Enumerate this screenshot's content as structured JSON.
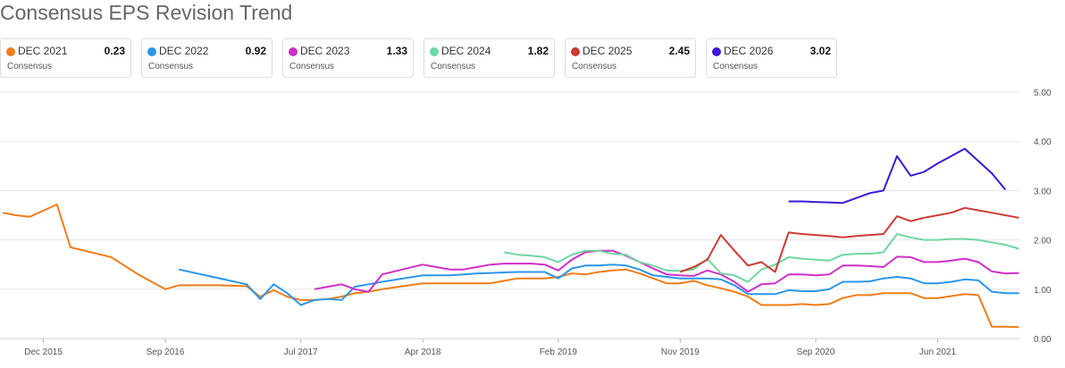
{
  "title": "Consensus EPS Revision Trend",
  "chart_data": {
    "type": "line",
    "title": "Consensus EPS Revision Trend",
    "xlabel": "",
    "ylabel": "",
    "ylim": [
      0,
      5
    ],
    "yticks": [
      "0.00",
      "1.00",
      "2.00",
      "3.00",
      "4.00",
      "5.00"
    ],
    "xticks": [
      {
        "label": "Dec 2015",
        "x": "2015-12"
      },
      {
        "label": "Sep 2016",
        "x": "2016-09"
      },
      {
        "label": "Jul 2017",
        "x": "2017-07"
      },
      {
        "label": "Apr 2018",
        "x": "2018-04"
      },
      {
        "label": "Feb 2019",
        "x": "2019-02"
      },
      {
        "label": "Nov 2019",
        "x": "2019-11"
      },
      {
        "label": "Sep 2020",
        "x": "2020-09"
      },
      {
        "label": "Jun 2021",
        "x": "2021-06"
      }
    ],
    "grid": "horizontal",
    "legend": "top",
    "series": [
      {
        "name": "DEC 2021",
        "value": "0.23",
        "sub": "Consensus",
        "color": "#f07d1a",
        "points": [
          [
            "2015-09",
            2.55
          ],
          [
            "2015-10",
            2.5
          ],
          [
            "2015-11",
            2.47
          ],
          [
            "2016-01",
            2.72
          ],
          [
            "2016-02",
            1.85
          ],
          [
            "2016-05",
            1.65
          ],
          [
            "2016-07",
            1.3
          ],
          [
            "2016-09",
            1.0
          ],
          [
            "2016-10",
            1.08
          ],
          [
            "2016-11",
            1.08
          ],
          [
            "2017-01",
            1.08
          ],
          [
            "2017-02",
            1.07
          ],
          [
            "2017-03",
            1.06
          ],
          [
            "2017-04",
            0.85
          ],
          [
            "2017-05",
            0.98
          ],
          [
            "2017-06",
            0.85
          ],
          [
            "2017-07",
            0.78
          ],
          [
            "2017-08",
            0.78
          ],
          [
            "2017-09",
            0.8
          ],
          [
            "2017-10",
            0.85
          ],
          [
            "2017-11",
            0.92
          ],
          [
            "2017-12",
            0.95
          ],
          [
            "2018-01",
            1.0
          ],
          [
            "2018-04",
            1.12
          ],
          [
            "2018-05",
            1.12
          ],
          [
            "2018-06",
            1.12
          ],
          [
            "2018-07",
            1.12
          ],
          [
            "2018-08",
            1.12
          ],
          [
            "2018-09",
            1.12
          ],
          [
            "2018-10",
            1.17
          ],
          [
            "2018-11",
            1.22
          ],
          [
            "2018-12",
            1.22
          ],
          [
            "2019-01",
            1.22
          ],
          [
            "2019-02",
            1.25
          ],
          [
            "2019-03",
            1.32
          ],
          [
            "2019-04",
            1.3
          ],
          [
            "2019-05",
            1.35
          ],
          [
            "2019-06",
            1.38
          ],
          [
            "2019-07",
            1.4
          ],
          [
            "2019-08",
            1.32
          ],
          [
            "2019-09",
            1.22
          ],
          [
            "2019-10",
            1.12
          ],
          [
            "2019-11",
            1.12
          ],
          [
            "2019-12",
            1.17
          ],
          [
            "2020-01",
            1.08
          ],
          [
            "2020-02",
            1.02
          ],
          [
            "2020-03",
            0.95
          ],
          [
            "2020-04",
            0.85
          ],
          [
            "2020-05",
            0.68
          ],
          [
            "2020-06",
            0.68
          ],
          [
            "2020-07",
            0.68
          ],
          [
            "2020-08",
            0.7
          ],
          [
            "2020-09",
            0.68
          ],
          [
            "2020-10",
            0.7
          ],
          [
            "2020-11",
            0.82
          ],
          [
            "2020-12",
            0.88
          ],
          [
            "2021-01",
            0.88
          ],
          [
            "2021-02",
            0.92
          ],
          [
            "2021-03",
            0.92
          ],
          [
            "2021-04",
            0.92
          ],
          [
            "2021-05",
            0.82
          ],
          [
            "2021-06",
            0.82
          ],
          [
            "2021-07",
            0.86
          ],
          [
            "2021-08",
            0.9
          ],
          [
            "2021-09",
            0.88
          ],
          [
            "2021-10",
            0.24
          ],
          [
            "2021-11",
            0.24
          ],
          [
            "2021-12",
            0.23
          ]
        ]
      },
      {
        "name": "DEC 2022",
        "value": "0.92",
        "sub": "Consensus",
        "color": "#2b96e8",
        "points": [
          [
            "2016-10",
            1.4
          ],
          [
            "2017-03",
            1.1
          ],
          [
            "2017-04",
            0.8
          ],
          [
            "2017-05",
            1.1
          ],
          [
            "2017-06",
            0.92
          ],
          [
            "2017-07",
            0.68
          ],
          [
            "2017-08",
            0.78
          ],
          [
            "2017-09",
            0.8
          ],
          [
            "2017-10",
            0.78
          ],
          [
            "2017-11",
            1.05
          ],
          [
            "2017-12",
            1.1
          ],
          [
            "2018-01",
            1.15
          ],
          [
            "2018-04",
            1.28
          ],
          [
            "2018-05",
            1.28
          ],
          [
            "2018-06",
            1.28
          ],
          [
            "2018-07",
            1.3
          ],
          [
            "2018-08",
            1.32
          ],
          [
            "2018-09",
            1.33
          ],
          [
            "2018-10",
            1.34
          ],
          [
            "2018-11",
            1.35
          ],
          [
            "2018-12",
            1.35
          ],
          [
            "2019-01",
            1.35
          ],
          [
            "2019-02",
            1.22
          ],
          [
            "2019-03",
            1.42
          ],
          [
            "2019-04",
            1.48
          ],
          [
            "2019-05",
            1.48
          ],
          [
            "2019-06",
            1.5
          ],
          [
            "2019-07",
            1.48
          ],
          [
            "2019-08",
            1.4
          ],
          [
            "2019-09",
            1.28
          ],
          [
            "2019-10",
            1.25
          ],
          [
            "2019-11",
            1.22
          ],
          [
            "2019-12",
            1.22
          ],
          [
            "2020-01",
            1.22
          ],
          [
            "2020-02",
            1.2
          ],
          [
            "2020-03",
            1.08
          ],
          [
            "2020-04",
            0.9
          ],
          [
            "2020-05",
            0.9
          ],
          [
            "2020-06",
            0.9
          ],
          [
            "2020-07",
            0.98
          ],
          [
            "2020-08",
            0.96
          ],
          [
            "2020-09",
            0.96
          ],
          [
            "2020-10",
            1.0
          ],
          [
            "2020-11",
            1.15
          ],
          [
            "2020-12",
            1.15
          ],
          [
            "2021-01",
            1.16
          ],
          [
            "2021-02",
            1.22
          ],
          [
            "2021-03",
            1.25
          ],
          [
            "2021-04",
            1.22
          ],
          [
            "2021-05",
            1.12
          ],
          [
            "2021-06",
            1.12
          ],
          [
            "2021-07",
            1.15
          ],
          [
            "2021-08",
            1.2
          ],
          [
            "2021-09",
            1.18
          ],
          [
            "2021-10",
            0.95
          ],
          [
            "2021-11",
            0.92
          ],
          [
            "2021-12",
            0.92
          ]
        ]
      },
      {
        "name": "DEC 2023",
        "value": "1.33",
        "sub": "Consensus",
        "color": "#cf2fc7",
        "points": [
          [
            "2017-08",
            1.0
          ],
          [
            "2017-09",
            1.05
          ],
          [
            "2017-10",
            1.1
          ],
          [
            "2017-11",
            1.0
          ],
          [
            "2017-12",
            0.95
          ],
          [
            "2018-01",
            1.3
          ],
          [
            "2018-04",
            1.5
          ],
          [
            "2018-05",
            1.45
          ],
          [
            "2018-06",
            1.4
          ],
          [
            "2018-07",
            1.4
          ],
          [
            "2018-08",
            1.45
          ],
          [
            "2018-09",
            1.5
          ],
          [
            "2018-10",
            1.52
          ],
          [
            "2018-11",
            1.52
          ],
          [
            "2018-12",
            1.52
          ],
          [
            "2019-01",
            1.5
          ],
          [
            "2019-02",
            1.38
          ],
          [
            "2019-03",
            1.6
          ],
          [
            "2019-04",
            1.75
          ],
          [
            "2019-05",
            1.78
          ],
          [
            "2019-06",
            1.78
          ],
          [
            "2019-07",
            1.68
          ],
          [
            "2019-08",
            1.55
          ],
          [
            "2019-09",
            1.42
          ],
          [
            "2019-10",
            1.3
          ],
          [
            "2019-11",
            1.28
          ],
          [
            "2019-12",
            1.27
          ],
          [
            "2020-01",
            1.38
          ],
          [
            "2020-02",
            1.3
          ],
          [
            "2020-03",
            1.15
          ],
          [
            "2020-04",
            0.95
          ],
          [
            "2020-05",
            1.1
          ],
          [
            "2020-06",
            1.12
          ],
          [
            "2020-07",
            1.3
          ],
          [
            "2020-08",
            1.3
          ],
          [
            "2020-09",
            1.28
          ],
          [
            "2020-10",
            1.3
          ],
          [
            "2020-11",
            1.48
          ],
          [
            "2020-12",
            1.48
          ],
          [
            "2021-01",
            1.47
          ],
          [
            "2021-02",
            1.45
          ],
          [
            "2021-03",
            1.66
          ],
          [
            "2021-04",
            1.65
          ],
          [
            "2021-05",
            1.55
          ],
          [
            "2021-06",
            1.55
          ],
          [
            "2021-07",
            1.58
          ],
          [
            "2021-08",
            1.62
          ],
          [
            "2021-09",
            1.55
          ],
          [
            "2021-10",
            1.36
          ],
          [
            "2021-11",
            1.32
          ],
          [
            "2021-12",
            1.33
          ]
        ]
      },
      {
        "name": "DEC 2024",
        "value": "1.82",
        "sub": "Consensus",
        "color": "#6fd6a1",
        "points": [
          [
            "2018-10",
            1.75
          ],
          [
            "2018-11",
            1.7
          ],
          [
            "2018-12",
            1.68
          ],
          [
            "2019-01",
            1.65
          ],
          [
            "2019-02",
            1.55
          ],
          [
            "2019-03",
            1.7
          ],
          [
            "2019-04",
            1.78
          ],
          [
            "2019-05",
            1.78
          ],
          [
            "2019-06",
            1.72
          ],
          [
            "2019-07",
            1.7
          ],
          [
            "2019-08",
            1.55
          ],
          [
            "2019-09",
            1.48
          ],
          [
            "2019-10",
            1.38
          ],
          [
            "2019-11",
            1.37
          ],
          [
            "2019-12",
            1.4
          ],
          [
            "2020-01",
            1.62
          ],
          [
            "2020-02",
            1.32
          ],
          [
            "2020-03",
            1.28
          ],
          [
            "2020-04",
            1.15
          ],
          [
            "2020-05",
            1.4
          ],
          [
            "2020-06",
            1.5
          ],
          [
            "2020-07",
            1.65
          ],
          [
            "2020-08",
            1.62
          ],
          [
            "2020-09",
            1.6
          ],
          [
            "2020-10",
            1.58
          ],
          [
            "2020-11",
            1.7
          ],
          [
            "2020-12",
            1.72
          ],
          [
            "2021-01",
            1.72
          ],
          [
            "2021-02",
            1.75
          ],
          [
            "2021-03",
            2.12
          ],
          [
            "2021-04",
            2.05
          ],
          [
            "2021-05",
            2.0
          ],
          [
            "2021-06",
            2.0
          ],
          [
            "2021-07",
            2.02
          ],
          [
            "2021-08",
            2.02
          ],
          [
            "2021-09",
            2.0
          ],
          [
            "2021-10",
            1.95
          ],
          [
            "2021-11",
            1.9
          ],
          [
            "2021-12",
            1.82
          ]
        ]
      },
      {
        "name": "DEC 2025",
        "value": "2.45",
        "sub": "Consensus",
        "color": "#cc3b35",
        "points": [
          [
            "2019-11",
            1.35
          ],
          [
            "2019-12",
            1.45
          ],
          [
            "2020-01",
            1.6
          ],
          [
            "2020-02",
            2.1
          ],
          [
            "2020-03",
            1.78
          ],
          [
            "2020-04",
            1.48
          ],
          [
            "2020-05",
            1.55
          ],
          [
            "2020-06",
            1.35
          ],
          [
            "2020-07",
            2.15
          ],
          [
            "2020-08",
            2.12
          ],
          [
            "2020-09",
            2.1
          ],
          [
            "2020-10",
            2.08
          ],
          [
            "2020-11",
            2.05
          ],
          [
            "2020-12",
            2.08
          ],
          [
            "2021-01",
            2.1
          ],
          [
            "2021-02",
            2.12
          ],
          [
            "2021-03",
            2.48
          ],
          [
            "2021-04",
            2.38
          ],
          [
            "2021-05",
            2.45
          ],
          [
            "2021-06",
            2.5
          ],
          [
            "2021-07",
            2.55
          ],
          [
            "2021-08",
            2.65
          ],
          [
            "2021-09",
            2.6
          ],
          [
            "2021-10",
            2.55
          ],
          [
            "2021-11",
            2.5
          ],
          [
            "2021-12",
            2.45
          ]
        ]
      },
      {
        "name": "DEC 2026",
        "value": "3.02",
        "sub": "Consensus",
        "color": "#3f17d6",
        "points": [
          [
            "2020-07",
            2.78
          ],
          [
            "2020-08",
            2.78
          ],
          [
            "2020-09",
            2.77
          ],
          [
            "2020-10",
            2.76
          ],
          [
            "2020-11",
            2.75
          ],
          [
            "2020-12",
            2.85
          ],
          [
            "2021-01",
            2.95
          ],
          [
            "2021-02",
            3.0
          ],
          [
            "2021-03",
            3.7
          ],
          [
            "2021-04",
            3.3
          ],
          [
            "2021-05",
            3.38
          ],
          [
            "2021-06",
            3.55
          ],
          [
            "2021-07",
            3.7
          ],
          [
            "2021-08",
            3.85
          ],
          [
            "2021-09",
            3.6
          ],
          [
            "2021-10",
            3.35
          ],
          [
            "2021-11",
            3.02
          ]
        ]
      }
    ]
  }
}
